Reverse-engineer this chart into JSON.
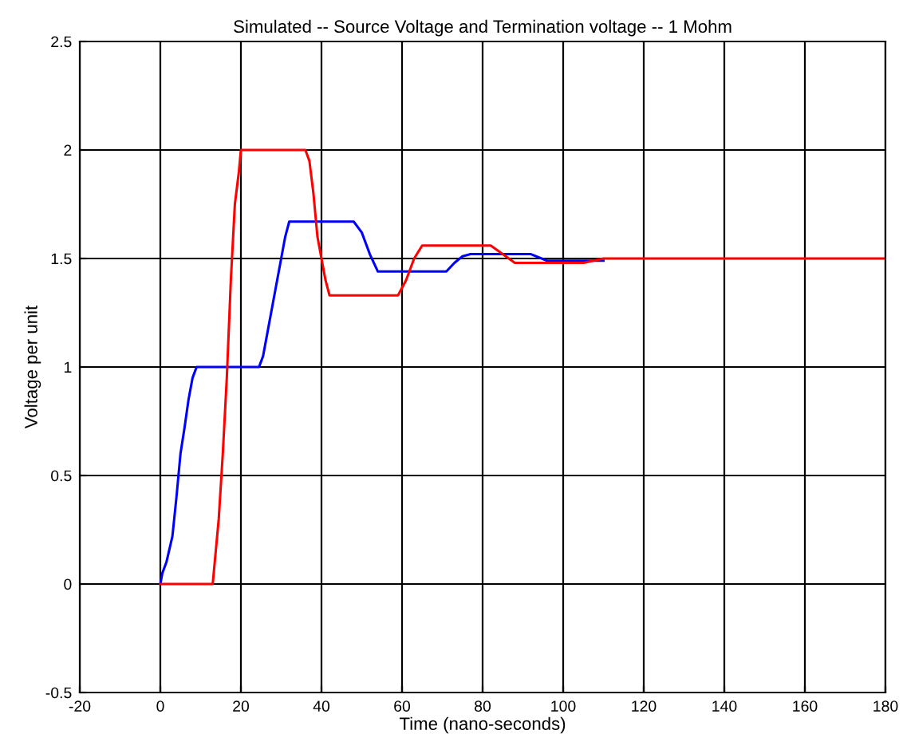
{
  "chart_data": {
    "type": "line",
    "title": "Simulated -- Source Voltage and Termination voltage -- 1 Mohm",
    "xlabel": "Time (nano-seconds)",
    "ylabel": "Voltage per unit",
    "series": [
      {
        "color": "#0000ff",
        "x": [
          0,
          0.5,
          1.5,
          3,
          4,
          5,
          6,
          7,
          8,
          9,
          24.5,
          25.5,
          27,
          28.5,
          30,
          31,
          32,
          48,
          50,
          52,
          54,
          71,
          73,
          75,
          77,
          92,
          96,
          110
        ],
        "values": [
          0,
          0.05,
          0.1,
          0.22,
          0.4,
          0.6,
          0.72,
          0.85,
          0.95,
          1,
          1,
          1.05,
          1.2,
          1.35,
          1.5,
          1.6,
          1.67,
          1.67,
          1.62,
          1.52,
          1.44,
          1.44,
          1.48,
          1.51,
          1.52,
          1.52,
          1.49,
          1.49
        ]
      },
      {
        "color": "#ff0000",
        "x": [
          0,
          13,
          13.5,
          14.5,
          15.5,
          16.5,
          17.5,
          18.5,
          19.5,
          20,
          36,
          37,
          38,
          39,
          40,
          41,
          42,
          59,
          61,
          63,
          65,
          82,
          85,
          88,
          105,
          110,
          180
        ],
        "values": [
          0,
          0,
          0.1,
          0.3,
          0.6,
          0.95,
          1.4,
          1.75,
          1.9,
          2,
          2,
          1.95,
          1.8,
          1.6,
          1.5,
          1.4,
          1.33,
          1.33,
          1.4,
          1.5,
          1.56,
          1.56,
          1.52,
          1.48,
          1.48,
          1.5,
          1.5
        ]
      }
    ],
    "xlim": [
      -20,
      180
    ],
    "xticks": [
      -20,
      0,
      20,
      40,
      60,
      80,
      100,
      120,
      140,
      160,
      180
    ],
    "ylim": [
      -0.5,
      2.5
    ],
    "yticks": [
      -0.5,
      0,
      0.5,
      1,
      1.5,
      2,
      2.5
    ],
    "grid": true,
    "legend": false
  }
}
